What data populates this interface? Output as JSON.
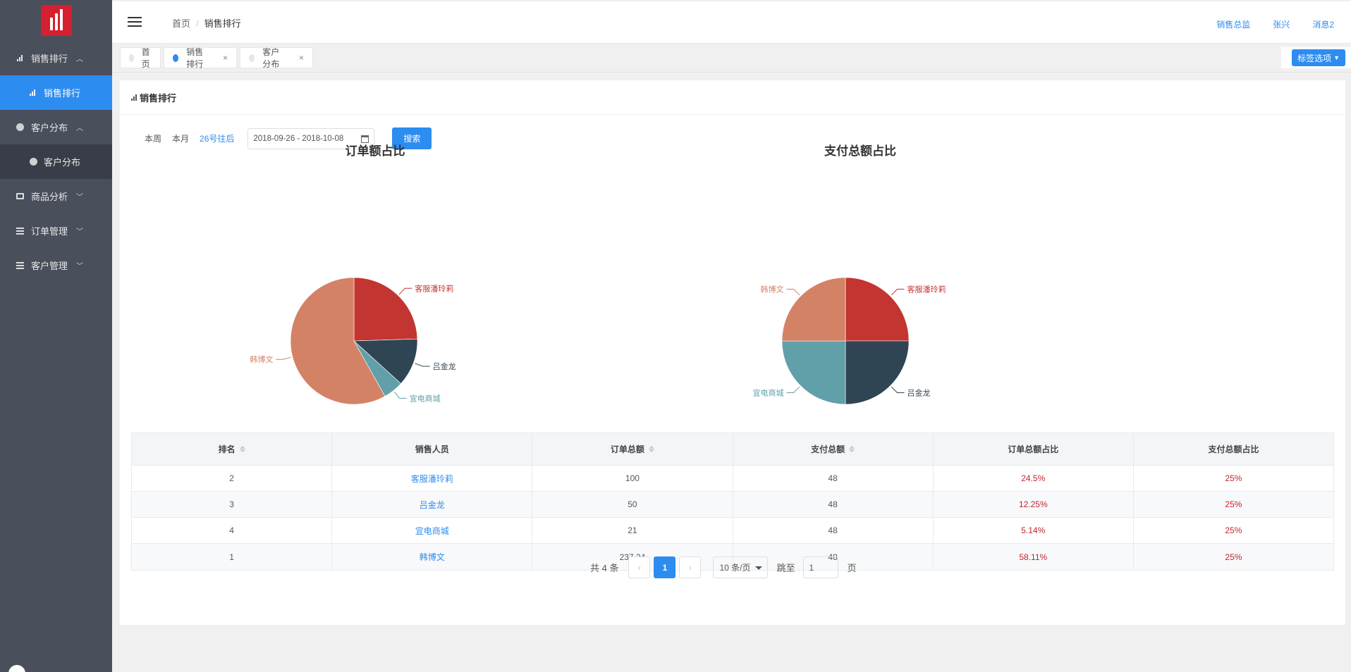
{
  "sidebar": {
    "items": [
      {
        "label": "销售排行",
        "expanded": true,
        "sub": "销售排行"
      },
      {
        "label": "客户分布",
        "expanded": true,
        "sub": "客户分布"
      },
      {
        "label": "商品分析"
      },
      {
        "label": "订单管理"
      },
      {
        "label": "客户管理"
      }
    ]
  },
  "header": {
    "breadcrumb": [
      "首页",
      "销售排行"
    ],
    "links": [
      "销售总监",
      "张兴",
      "消息2"
    ]
  },
  "tabs": [
    {
      "label": "首页",
      "active": false
    },
    {
      "label": "销售排行",
      "active": true,
      "close": "×"
    },
    {
      "label": "客户分布",
      "active": false,
      "close": "×"
    }
  ],
  "tab_options_label": "标签选项",
  "card_title": "销售排行",
  "filters": {
    "week": "本周",
    "month": "本月",
    "after26": "26号往后",
    "date_range": "2018-09-26 - 2018-10-08",
    "search": "搜索"
  },
  "colors": {
    "客服潘玲莉": "#c23531",
    "吕金龙": "#2f4554",
    "宜电商城": "#61a0a8",
    "韩博文": "#d48265"
  },
  "chart_data": [
    {
      "type": "pie",
      "title": "订单额占比",
      "categories": [
        "客服潘玲莉",
        "吕金龙",
        "宜电商城",
        "韩博文"
      ],
      "values": [
        100,
        50,
        21,
        237.24
      ]
    },
    {
      "type": "pie",
      "title": "支付总额占比",
      "categories": [
        "客服潘玲莉",
        "吕金龙",
        "宜电商城",
        "韩博文"
      ],
      "values": [
        48,
        48,
        48,
        48
      ]
    }
  ],
  "table": {
    "headers": [
      "排名",
      "销售人员",
      "订单总额",
      "支付总额",
      "订单总额占比",
      "支付总额占比"
    ],
    "sortable": [
      true,
      false,
      true,
      true,
      false,
      false
    ],
    "rows": [
      [
        "2",
        "客服潘玲莉",
        "100",
        "48",
        "24.5%",
        "25%"
      ],
      [
        "3",
        "吕金龙",
        "50",
        "48",
        "12.25%",
        "25%"
      ],
      [
        "4",
        "宜电商城",
        "21",
        "48",
        "5.14%",
        "25%"
      ],
      [
        "1",
        "韩博文",
        "237.24",
        "48",
        "58.11%",
        "25%"
      ]
    ]
  },
  "pager": {
    "total": "共 4 条",
    "prev": "‹",
    "current": "1",
    "next": "›",
    "page_size": "10 条/页",
    "jump_label": "跳至",
    "jump_value": "1",
    "page_unit": "页"
  }
}
